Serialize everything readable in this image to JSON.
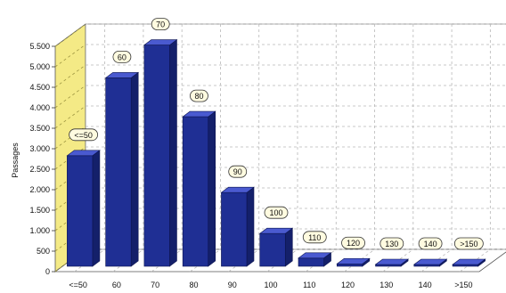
{
  "chart_data": {
    "type": "bar",
    "title": "",
    "xlabel": "",
    "ylabel": "Passages",
    "categories": [
      "<=50",
      "60",
      "70",
      "80",
      "90",
      "100",
      "110",
      "120",
      "130",
      "140",
      ">150"
    ],
    "values": [
      2700,
      4600,
      5400,
      3650,
      1800,
      800,
      200,
      60,
      40,
      10,
      20
    ],
    "data_labels": [
      "<=50",
      "60",
      "70",
      "80",
      "90",
      "100",
      "110",
      "120",
      "130",
      "140",
      ">150"
    ],
    "ylim": [
      0,
      5500
    ],
    "yticks": [
      0,
      500,
      1000,
      1500,
      2000,
      2500,
      3000,
      3500,
      4000,
      4500,
      5000,
      5500
    ],
    "ytick_labels": [
      "0",
      "500",
      "1.000",
      "1.500",
      "2.000",
      "2.500",
      "3.000",
      "3.500",
      "4.000",
      "4.500",
      "5.000",
      "5.500"
    ],
    "grid": true,
    "three_d": true,
    "colors": {
      "bar_front": "#1f2f94",
      "bar_top": "#4a5ad0",
      "bar_side": "#14206a",
      "side_wall": "#f4ea86",
      "label_fill": "#fffbe0",
      "grid": "#b8b8b8"
    }
  }
}
